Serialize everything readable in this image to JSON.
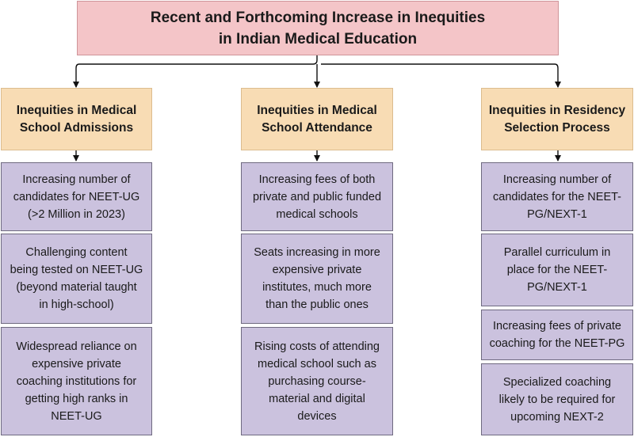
{
  "title": "Recent and Forthcoming Increase in Inequities\nin Indian Medical Education",
  "columns": [
    {
      "header": "Inequities in Medical\nSchool Admissions",
      "items": [
        "Increasing number of\ncandidates for NEET-UG\n(>2 Million in 2023)",
        "Challenging content\nbeing tested on NEET-UG\n(beyond material taught\nin high-school)",
        "Widespread reliance on\nexpensive private\ncoaching institutions for\ngetting high ranks in\nNEET-UG"
      ]
    },
    {
      "header": "Inequities in Medical\nSchool Attendance",
      "items": [
        "Increasing fees of both\nprivate and public funded\nmedical schools",
        "Seats increasing in more\nexpensive private\ninstitutes, much more\nthan the public ones",
        "Rising costs of attending\nmedical school such as\npurchasing course-\nmaterial and digital\ndevices"
      ]
    },
    {
      "header": "Inequities in Residency\nSelection Process",
      "items": [
        "Increasing number of\ncandidates for the NEET-\nPG/NEXT-1",
        "Parallel curriculum in\nplace for the NEET-\nPG/NEXT-1",
        "Increasing fees of private\ncoaching for the NEET-PG",
        "Specialized coaching\nlikely to be required for\nupcoming NEXT-2"
      ]
    }
  ]
}
